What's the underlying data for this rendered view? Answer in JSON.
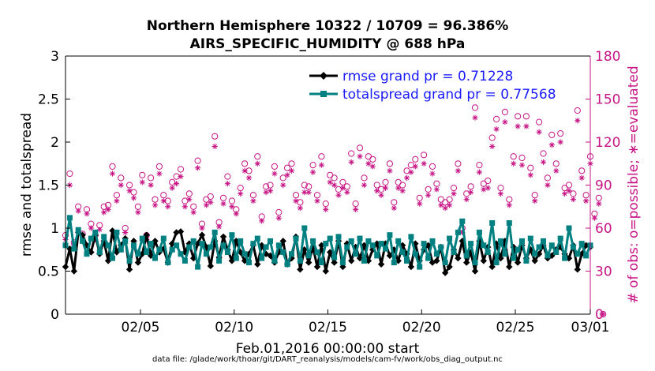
{
  "chart_data": {
    "type": "line",
    "title": "Northern Hemisphere 10322 / 10709 = 96.386%",
    "subtitle": "AIRS_SPECIFIC_HUMIDITY @ 688 hPa",
    "xlabel": "Feb.01,2016 00:00:00 start",
    "ylabel": "rmse and totalspread",
    "y2label": "# of obs: o=possible; ∗=evaluated",
    "footer": "data file: /glade/work/thoar/git/DART_reanalysis/models/cam-fv/work/obs_diag_output.nc",
    "xlim": [
      1.0,
      29.0
    ],
    "ylim": [
      0,
      3
    ],
    "y2lim": [
      0,
      180
    ],
    "x_tick_values": [
      5,
      10,
      15,
      20,
      25,
      29
    ],
    "x_tick_labels": [
      "02/05",
      "02/10",
      "02/15",
      "02/20",
      "02/25",
      "03/01"
    ],
    "y_ticks": [
      "0",
      "0.5",
      "1",
      "1.5",
      "2",
      "2.5",
      "3"
    ],
    "y2_ticks": [
      "0",
      "30",
      "60",
      "90",
      "120",
      "150",
      "180"
    ],
    "legend_position": "top-right",
    "colors": {
      "rmse": "#000000",
      "totalspread": "#008080",
      "obs": "#c71585",
      "legend_text": "#1a1aff",
      "y2axis": "#c71585"
    },
    "series": [
      {
        "name": "rmse grand pr = 0.71228",
        "marker": "diamond",
        "values": [
          0.55,
          0.76,
          0.5,
          0.95,
          0.92,
          0.8,
          0.72,
          0.92,
          0.7,
          0.85,
          0.62,
          0.97,
          0.72,
          0.8,
          0.88,
          0.52,
          0.85,
          0.6,
          0.7,
          0.92,
          0.68,
          0.85,
          0.72,
          0.76,
          0.6,
          0.82,
          0.95,
          0.96,
          0.72,
          0.82,
          0.65,
          0.82,
          0.92,
          0.78,
          0.56,
          0.85,
          0.66,
          0.9,
          0.75,
          0.62,
          0.85,
          0.72,
          0.62,
          0.7,
          0.8,
          0.58,
          0.8,
          0.7,
          0.68,
          0.6,
          0.72,
          0.85,
          0.58,
          0.65,
          0.9,
          0.52,
          0.75,
          0.6,
          0.78,
          0.55,
          0.8,
          0.5,
          0.72,
          0.6,
          0.85,
          0.55,
          0.82,
          0.62,
          0.78,
          0.65,
          0.8,
          0.62,
          0.75,
          0.82,
          0.58,
          0.82,
          0.68,
          0.75,
          0.62,
          0.8,
          0.7,
          0.55,
          0.82,
          0.62,
          0.75,
          0.8,
          0.6,
          0.62,
          0.78,
          0.48,
          0.55,
          0.75,
          0.65,
          0.85,
          0.6,
          0.72,
          0.5,
          0.85,
          0.62,
          0.78,
          0.55,
          0.82,
          0.65,
          0.85,
          0.55,
          0.78,
          0.6,
          0.8,
          0.65,
          0.75,
          0.62,
          0.7,
          0.8,
          0.65,
          0.68,
          0.75,
          0.78,
          0.7,
          0.65,
          0.8,
          0.52,
          0.7,
          0.8,
          0.78
        ]
      },
      {
        "name": "totalspread grand pr = 0.77568",
        "marker": "square",
        "values": [
          0.8,
          1.12,
          0.76,
          0.98,
          0.85,
          0.7,
          0.88,
          0.95,
          0.72,
          0.9,
          0.8,
          0.65,
          0.95,
          0.75,
          0.85,
          0.62,
          0.8,
          0.7,
          0.88,
          0.72,
          0.82,
          0.65,
          0.75,
          0.88,
          0.6,
          0.75,
          0.8,
          0.7,
          0.62,
          0.78,
          0.85,
          0.55,
          0.82,
          0.7,
          0.78,
          0.95,
          0.62,
          0.8,
          0.72,
          0.92,
          0.65,
          0.85,
          0.7,
          0.6,
          0.82,
          0.88,
          0.65,
          0.78,
          0.85,
          0.62,
          0.8,
          0.72,
          0.58,
          0.7,
          0.88,
          0.62,
          1.0,
          0.68,
          0.85,
          0.72,
          0.6,
          0.82,
          0.88,
          0.66,
          0.9,
          0.6,
          0.78,
          0.85,
          0.7,
          0.88,
          0.62,
          0.85,
          0.8,
          0.68,
          0.82,
          0.76,
          0.92,
          0.6,
          0.85,
          0.72,
          0.62,
          0.9,
          0.7,
          0.55,
          0.82,
          0.65,
          0.85,
          0.7,
          0.78,
          0.6,
          0.88,
          0.72,
          0.95,
          1.08,
          0.68,
          0.82,
          0.6,
          0.95,
          0.8,
          0.72,
          1.06,
          0.6,
          0.85,
          0.7,
          1.06,
          0.65,
          0.75,
          0.85,
          0.62,
          0.88,
          0.7,
          0.78,
          0.85,
          0.68,
          0.8,
          0.72,
          0.88,
          0.65,
          1.0,
          0.78,
          0.7,
          0.82,
          0.68,
          0.8
        ]
      },
      {
        "name": "possible",
        "axis": "right",
        "marker": "circle",
        "values": [
          55,
          98,
          50,
          75,
          56,
          73,
          63,
          55,
          62,
          75,
          76,
          103,
          83,
          95,
          60,
          90,
          85,
          75,
          97,
          55,
          95,
          80,
          103,
          83,
          79,
          92,
          96,
          101,
          79,
          84,
          75,
          107,
          63,
          80,
          82,
          124,
          64,
          81,
          96,
          79,
          73,
          88,
          105,
          100,
          83,
          110,
          68,
          89,
          90,
          103,
          71,
          95,
          102,
          105,
          83,
          78,
          90,
          89,
          104,
          83,
          110,
          77,
          97,
          95,
          87,
          92,
          89,
          112,
          77,
          116,
          95,
          110,
          108,
          90,
          87,
          92,
          105,
          78,
          92,
          90,
          100,
          104,
          108,
          81,
          111,
          87,
          103,
          91,
          80,
          78,
          80,
          88,
          105,
          60,
          84,
          89,
          144,
          104,
          91,
          93,
          123,
          136,
          88,
          141,
          80,
          110,
          138,
          109,
          138,
          102,
          83,
          134,
          112,
          95,
          125,
          105,
          126,
          88,
          90,
          84,
          142,
          100,
          83,
          110,
          70,
          81,
          0
        ]
      },
      {
        "name": "evaluated",
        "axis": "right",
        "marker": "asterisk",
        "values": [
          52,
          90,
          48,
          72,
          53,
          70,
          60,
          52,
          59,
          71,
          73,
          98,
          79,
          90,
          57,
          86,
          81,
          71,
          92,
          52,
          90,
          76,
          98,
          79,
          75,
          88,
          91,
          96,
          75,
          80,
          71,
          102,
          60,
          76,
          78,
          117,
          61,
          77,
          91,
          75,
          70,
          84,
          100,
          95,
          79,
          105,
          65,
          85,
          86,
          98,
          67,
          90,
          97,
          100,
          79,
          74,
          85,
          85,
          99,
          79,
          104,
          73,
          92,
          90,
          83,
          88,
          85,
          106,
          73,
          110,
          90,
          105,
          103,
          86,
          83,
          88,
          100,
          74,
          88,
          86,
          95,
          99,
          103,
          77,
          105,
          83,
          98,
          87,
          76,
          74,
          76,
          84,
          100,
          57,
          80,
          85,
          137,
          99,
          87,
          88,
          117,
          129,
          84,
          134,
          76,
          105,
          131,
          104,
          131,
          97,
          79,
          127,
          106,
          90,
          118,
          100,
          120,
          84,
          86,
          80,
          135,
          95,
          79,
          105,
          67,
          77,
          0
        ]
      }
    ]
  }
}
